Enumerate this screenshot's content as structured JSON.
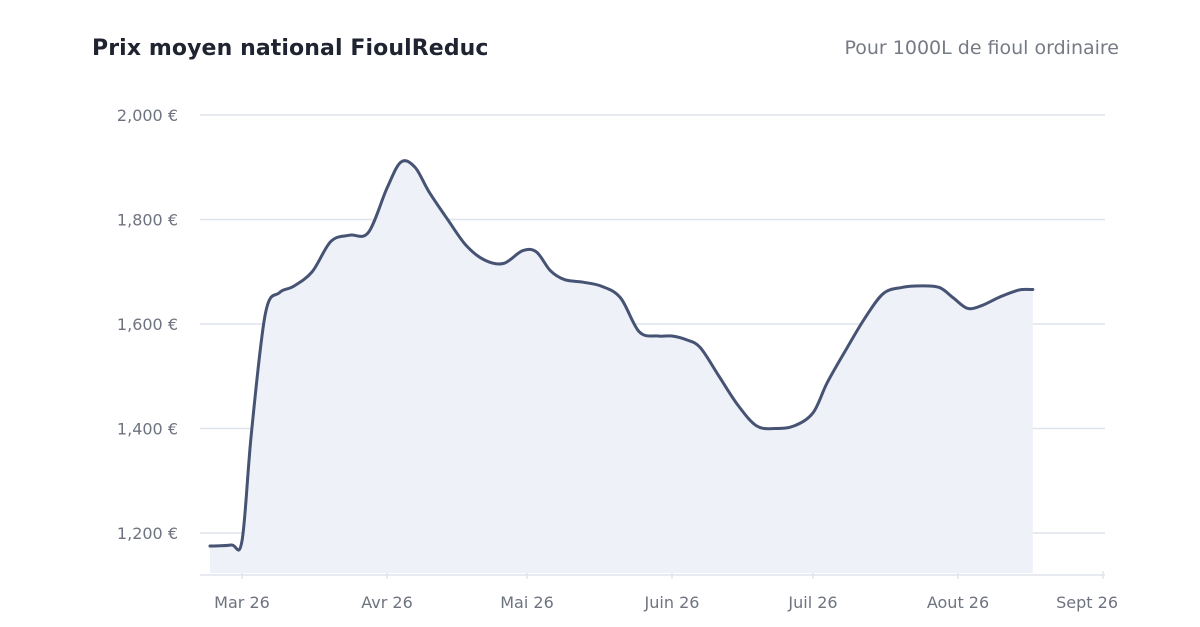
{
  "header": {
    "title": "Prix moyen national FioulReduc",
    "subtitle": "Pour 1000L de fioul ordinaire"
  },
  "colors": {
    "line": "#465373",
    "area": "#eff1f9",
    "grid": "#dfe3ec",
    "tick_text": "#6e7380",
    "title": "#1f2430",
    "subtitle": "#757a85"
  },
  "chart_data": {
    "type": "area",
    "title": "Prix moyen national FioulReduc",
    "subtitle": "Pour 1000L de fioul ordinaire",
    "xlabel": "",
    "ylabel": "",
    "grid": true,
    "legend": "none",
    "ylim": [
      1130,
      2000
    ],
    "xlim": [
      "2026-02-23",
      "2026-09-01"
    ],
    "y_ticks": [
      2000,
      1800,
      1600,
      1400,
      1200
    ],
    "y_tick_labels": [
      "2,000 €",
      "1,800 €",
      "1,600 €",
      "1,400 €",
      "1,200 €"
    ],
    "x_ticks": [
      "2026-03-01",
      "2026-04-01",
      "2026-05-01",
      "2026-06-01",
      "2026-07-01",
      "2026-08-01",
      "2026-09-01"
    ],
    "x_tick_labels": [
      "Mar 26",
      "Avr 26",
      "Mai 26",
      "Juin 26",
      "Juil 26",
      "Aout 26",
      "Sept 26"
    ],
    "series": [
      {
        "x": [
          "2026-02-23",
          "2026-02-27",
          "2026-03-01",
          "2026-03-03",
          "2026-03-06",
          "2026-03-09",
          "2026-03-12",
          "2026-03-16",
          "2026-03-20",
          "2026-03-24",
          "2026-03-28",
          "2026-04-01",
          "2026-04-04",
          "2026-04-07",
          "2026-04-10",
          "2026-04-14",
          "2026-04-18",
          "2026-04-22",
          "2026-04-26",
          "2026-04-30",
          "2026-05-03",
          "2026-05-06",
          "2026-05-09",
          "2026-05-13",
          "2026-05-17",
          "2026-05-21",
          "2026-05-25",
          "2026-05-29",
          "2026-06-01",
          "2026-06-04",
          "2026-06-07",
          "2026-06-11",
          "2026-06-15",
          "2026-06-19",
          "2026-06-23",
          "2026-06-27",
          "2026-07-01",
          "2026-07-04",
          "2026-07-08",
          "2026-07-12",
          "2026-07-16",
          "2026-07-20",
          "2026-07-24",
          "2026-07-28",
          "2026-07-31",
          "2026-08-03",
          "2026-08-06",
          "2026-08-10",
          "2026-08-14",
          "2026-08-17"
        ],
        "values": [
          1175,
          1177,
          1185,
          1390,
          1620,
          1660,
          1672,
          1700,
          1758,
          1770,
          1775,
          1860,
          1910,
          1900,
          1853,
          1800,
          1750,
          1722,
          1716,
          1740,
          1738,
          1702,
          1685,
          1680,
          1672,
          1650,
          1585,
          1577,
          1577,
          1570,
          1555,
          1500,
          1445,
          1405,
          1400,
          1405,
          1430,
          1487,
          1550,
          1610,
          1658,
          1670,
          1673,
          1670,
          1650,
          1630,
          1635,
          1652,
          1665,
          1666
        ]
      }
    ]
  }
}
